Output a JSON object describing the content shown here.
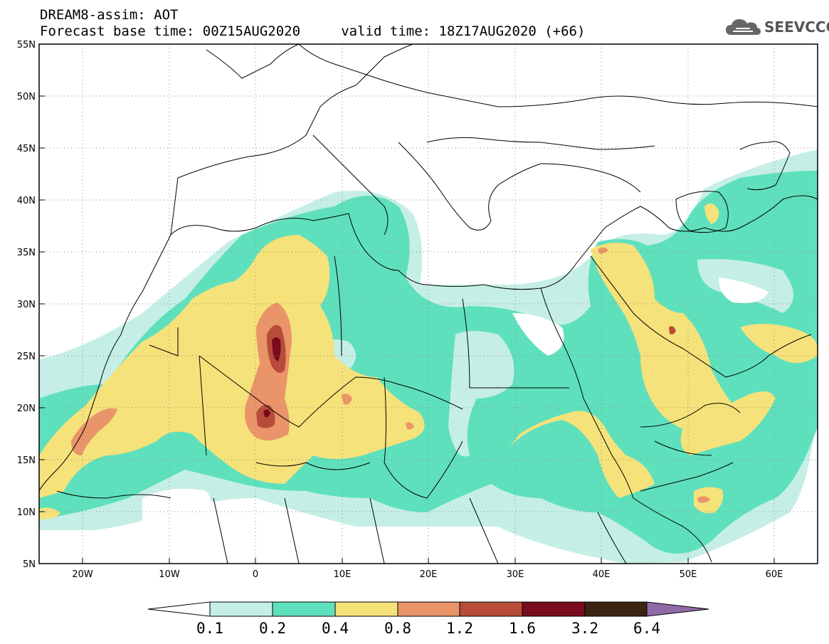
{
  "header": {
    "title_line1": "DREAM8-assim: AOT",
    "title_line2": "Forecast base time: 00Z15AUG2020     valid time: 18Z17AUG2020 (+66)"
  },
  "logo": {
    "text": "SEEVCCC",
    "icon": "cloud-icon"
  },
  "map": {
    "region": {
      "lon_min": -25,
      "lon_max": 65,
      "lat_min": 5,
      "lat_max": 55
    },
    "lat_labels": [
      "55N",
      "50N",
      "45N",
      "40N",
      "35N",
      "30N",
      "25N",
      "20N",
      "15N",
      "10N",
      "5N"
    ],
    "lon_labels": [
      "20W",
      "10W",
      "0",
      "10E",
      "20E",
      "30E",
      "40E",
      "50E",
      "60E"
    ],
    "grid": "dotted",
    "field": "AOT"
  },
  "colorbar": {
    "labels": [
      "0.1",
      "0.2",
      "0.4",
      "0.8",
      "1.2",
      "1.6",
      "3.2",
      "6.4"
    ],
    "colors": [
      "#ffffff",
      "#c5efe6",
      "#5fe0bd",
      "#f5e27a",
      "#ea946a",
      "#b84c3a",
      "#7a0a1e",
      "#3b2412",
      "#8f6aa5"
    ],
    "extend": "both"
  },
  "colors": {
    "land_outline": "#000000",
    "aot_0_1": "#c5efe6",
    "aot_0_2": "#5fe0bd",
    "aot_0_4": "#f5e27a",
    "aot_0_8": "#ea946a",
    "aot_1_2": "#b84c3a",
    "aot_1_6": "#7a0a1e"
  }
}
